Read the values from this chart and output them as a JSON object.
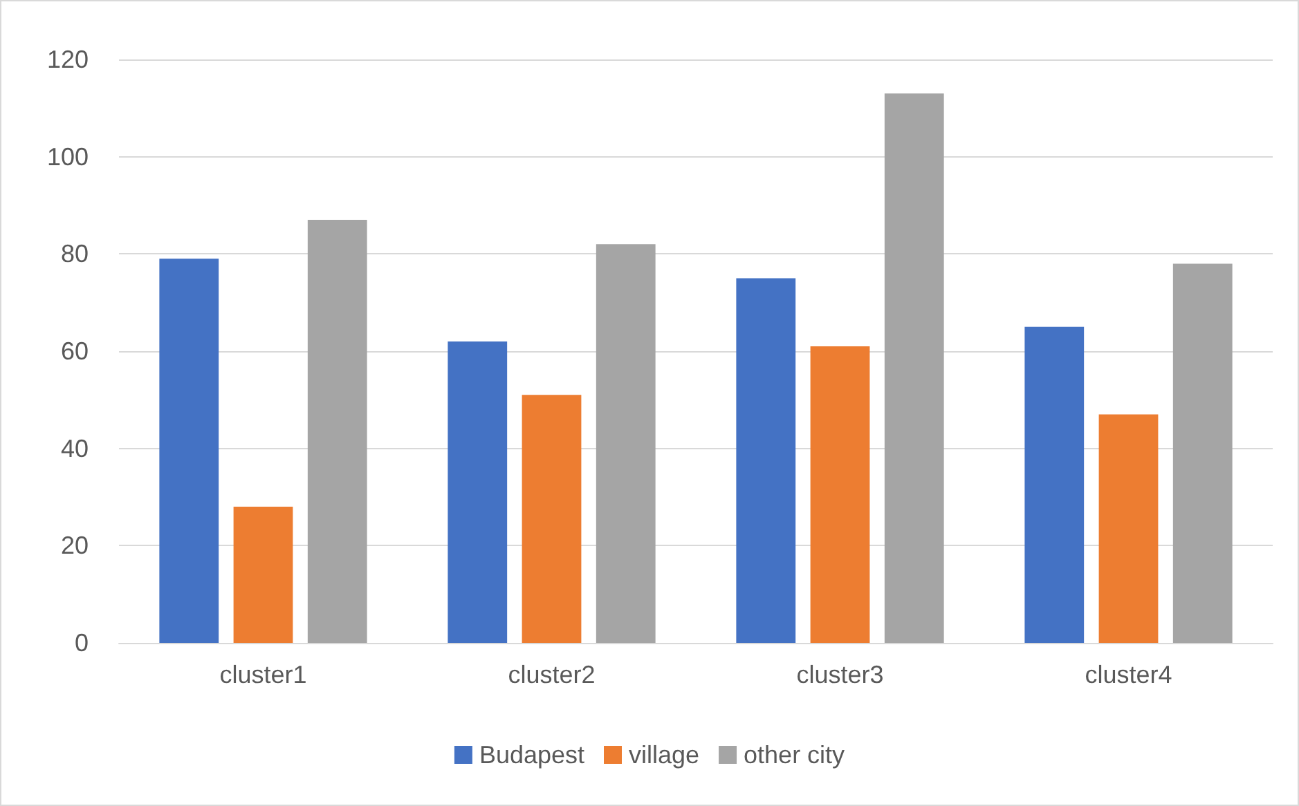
{
  "chart_data": {
    "type": "bar",
    "categories": [
      "cluster1",
      "cluster2",
      "cluster3",
      "cluster4"
    ],
    "series": [
      {
        "name": "Budapest",
        "color": "#4472c4",
        "values": [
          79,
          62,
          75,
          65
        ]
      },
      {
        "name": "village",
        "color": "#ed7d31",
        "values": [
          28,
          51,
          61,
          47
        ]
      },
      {
        "name": "other city",
        "color": "#a5a5a5",
        "values": [
          87,
          82,
          113,
          78
        ]
      }
    ],
    "ylim": [
      0,
      120
    ],
    "yticks": [
      0,
      20,
      40,
      60,
      80,
      100,
      120
    ],
    "grid": "y",
    "legend": "bottom"
  }
}
